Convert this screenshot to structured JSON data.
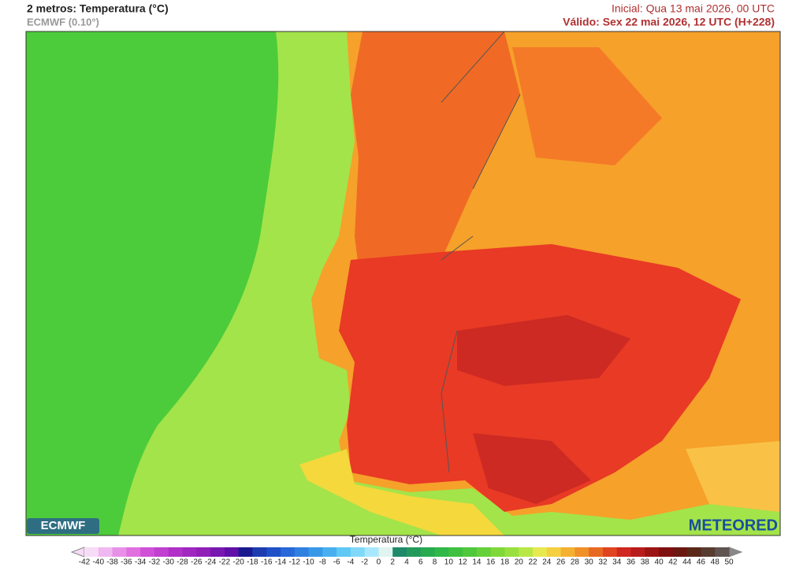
{
  "header": {
    "title": "2 metros: Temperatura (°C)",
    "model": "ECMWF (0.10°)",
    "initial": "Inicial: Qua 13 mai 2026, 00 UTC",
    "valid": "Válido: Sex 22 mai 2026, 12 UTC (H+228)"
  },
  "logos": {
    "left": "ECMWF",
    "right": "METEORED"
  },
  "colorbar": {
    "label": "Temperatura (°C)",
    "ticks": [
      -42,
      -40,
      -38,
      -36,
      -34,
      -32,
      -30,
      -28,
      -26,
      -24,
      -22,
      -20,
      -18,
      -16,
      -14,
      -12,
      -10,
      -8,
      -6,
      -4,
      -2,
      0,
      2,
      4,
      6,
      8,
      10,
      12,
      14,
      16,
      18,
      20,
      22,
      24,
      26,
      28,
      30,
      32,
      34,
      36,
      38,
      40,
      42,
      44,
      46,
      48,
      50
    ]
  }
}
